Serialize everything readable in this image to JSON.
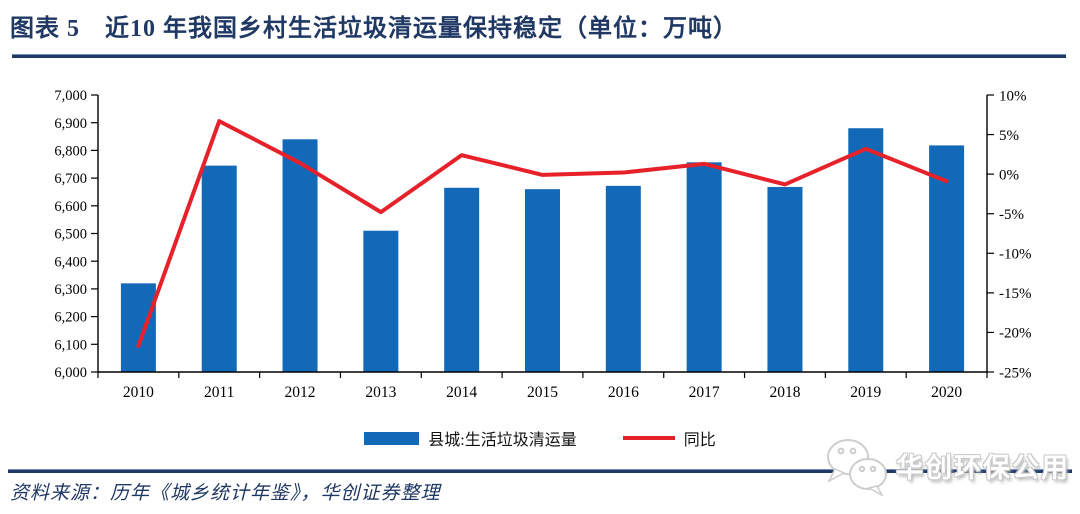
{
  "header": {
    "title": "图表 5　近10 年我国乡村生活垃圾清运量保持稳定（单位：万吨）"
  },
  "chart_data": {
    "type": "bar",
    "title": "近10年我国乡村生活垃圾清运量保持稳定",
    "unit": "万吨",
    "categories": [
      "2010",
      "2011",
      "2012",
      "2013",
      "2014",
      "2015",
      "2016",
      "2017",
      "2018",
      "2019",
      "2020"
    ],
    "series": [
      {
        "name": "县城:生活垃圾清运量",
        "chart": "bar",
        "axis": "left",
        "color": "#1269B7",
        "values": [
          6320,
          6745,
          6840,
          6510,
          6665,
          6660,
          6672,
          6757,
          6668,
          6880,
          6818
        ]
      },
      {
        "name": "同比",
        "chart": "line",
        "axis": "right",
        "color": "#E62129",
        "values": [
          -21.7,
          6.7,
          1.4,
          -4.8,
          2.4,
          -0.1,
          0.2,
          1.3,
          -1.3,
          3.2,
          -0.9
        ]
      }
    ],
    "left_axis": {
      "min": 6000,
      "max": 7000,
      "step": 100,
      "tick_labels": [
        "6,000",
        "6,100",
        "6,200",
        "6,300",
        "6,400",
        "6,500",
        "6,600",
        "6,700",
        "6,800",
        "6,900",
        "7,000"
      ]
    },
    "right_axis": {
      "min": -25,
      "max": 10,
      "step": 5,
      "tick_labels": [
        "-25%",
        "-20%",
        "-15%",
        "-10%",
        "-5%",
        "0%",
        "5%",
        "10%"
      ]
    },
    "legend_position": "bottom",
    "grid": false
  },
  "legend": {
    "items": [
      {
        "label": "县城:生活垃圾清运量",
        "swatch": "bar",
        "color": "#1269B7"
      },
      {
        "label": "同比",
        "swatch": "line",
        "color": "#E62129"
      }
    ]
  },
  "footer": {
    "source": "资料来源：历年《城乡统计年鉴》，华创证券整理"
  },
  "watermark": {
    "text": "华创环保公用",
    "icon": "wechat-icon"
  },
  "colors": {
    "navy": "#1F3864",
    "bar_blue": "#1269B7",
    "line_red": "#E62129",
    "axis_black": "#000000",
    "watermark_gray": "#C9C9C9"
  }
}
